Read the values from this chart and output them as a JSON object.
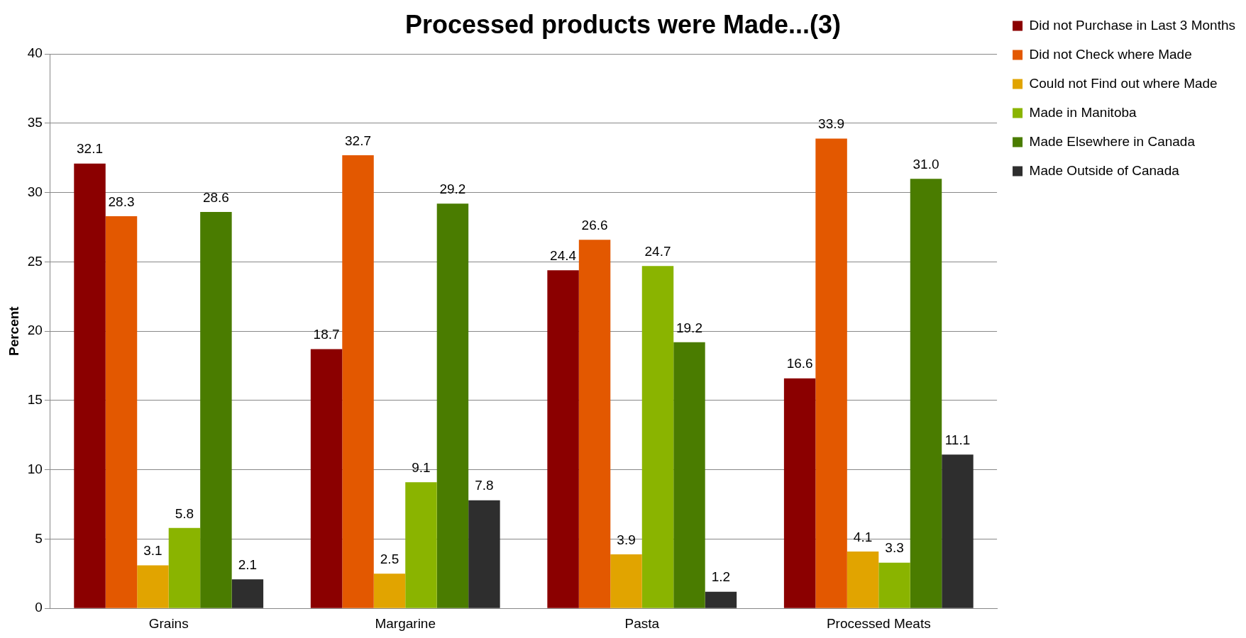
{
  "chart_data": {
    "type": "bar",
    "title": "Processed products were Made...(3)",
    "ylabel": "Percent",
    "categories": [
      "Grains",
      "Margarine",
      "Pasta",
      "Processed Meats"
    ],
    "series": [
      {
        "name": "Did not Purchase in Last 3 Months",
        "color": "#8b0000",
        "values": [
          32.1,
          18.7,
          24.4,
          16.6
        ],
        "value_labels": [
          "32.1",
          "18.7",
          "24.4",
          "16.6"
        ]
      },
      {
        "name": "Did not Check where Made",
        "color": "#e35800",
        "values": [
          28.3,
          32.7,
          26.6,
          33.9
        ],
        "value_labels": [
          "28.3",
          "32.7",
          "26.6",
          "33.9"
        ]
      },
      {
        "name": "Could not Find out where Made",
        "color": "#e1a400",
        "values": [
          3.1,
          2.5,
          3.9,
          4.1
        ],
        "value_labels": [
          "3.1",
          "2.5",
          "3.9",
          "4.1"
        ]
      },
      {
        "name": "Made in Manitoba",
        "color": "#8ab400",
        "values": [
          5.8,
          9.1,
          24.7,
          3.3
        ],
        "value_labels": [
          "5.8",
          "9.1",
          "24.7",
          "3.3"
        ]
      },
      {
        "name": "Made Elsewhere in Canada",
        "color": "#4a7c00",
        "values": [
          28.6,
          29.2,
          19.2,
          31.0
        ],
        "value_labels": [
          "28.6",
          "29.2",
          "19.2",
          "31.0"
        ]
      },
      {
        "name": "Made Outside of Canada",
        "color": "#2e2e2e",
        "values": [
          2.1,
          7.8,
          1.2,
          11.1
        ],
        "value_labels": [
          "2.1",
          "7.8",
          "1.2",
          "11.1"
        ]
      }
    ],
    "ylim": [
      0,
      40
    ],
    "yticks": [
      0,
      5,
      10,
      15,
      20,
      25,
      30,
      35,
      40
    ],
    "grid": "y",
    "legend": "top right"
  }
}
